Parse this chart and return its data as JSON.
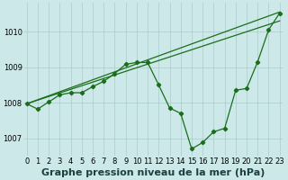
{
  "xlabel": "Graphe pression niveau de la mer (hPa)",
  "background_color": "#cce8e8",
  "grid_color": "#aacccc",
  "line_color": "#1a6e1a",
  "x_ticks": [
    0,
    1,
    2,
    3,
    4,
    5,
    6,
    7,
    8,
    9,
    10,
    11,
    12,
    13,
    14,
    15,
    16,
    17,
    18,
    19,
    20,
    21,
    22,
    23
  ],
  "ylim": [
    1006.5,
    1010.8
  ],
  "xlim": [
    -0.3,
    23.3
  ],
  "yticks": [
    1007,
    1008,
    1009,
    1010
  ],
  "series": [
    {
      "x": [
        0,
        23
      ],
      "y": [
        1007.97,
        1010.3
      ],
      "marker": false,
      "lw": 0.9
    },
    {
      "x": [
        0,
        23
      ],
      "y": [
        1007.97,
        1010.55
      ],
      "marker": false,
      "lw": 0.9
    },
    {
      "x": [
        0,
        1,
        2,
        3,
        4,
        5,
        6,
        7,
        8,
        9,
        10,
        11,
        12,
        13,
        14,
        15,
        16,
        17,
        18,
        19,
        20,
        21,
        22,
        23
      ],
      "y": [
        1007.97,
        1007.82,
        1008.02,
        1008.22,
        1008.28,
        1008.28,
        1008.45,
        1008.6,
        1008.82,
        1009.08,
        1009.13,
        1009.13,
        1008.5,
        1007.85,
        1007.7,
        1006.7,
        1006.88,
        1007.18,
        1007.28,
        1008.35,
        1008.4,
        1009.15,
        1010.05,
        1010.52
      ],
      "marker": true,
      "lw": 0.9
    }
  ],
  "xlabel_fontsize": 8,
  "xlabel_fontweight": "bold",
  "xlabel_color": "#1a4040",
  "tick_fontsize": 6,
  "fig_width": 3.2,
  "fig_height": 2.0,
  "dpi": 100
}
